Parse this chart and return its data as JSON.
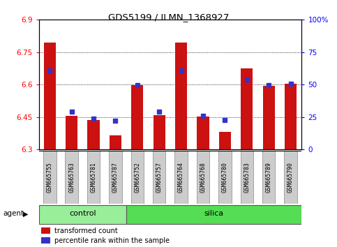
{
  "title": "GDS5199 / ILMN_1368927",
  "samples": [
    "GSM665755",
    "GSM665763",
    "GSM665781",
    "GSM665787",
    "GSM665752",
    "GSM665757",
    "GSM665764",
    "GSM665768",
    "GSM665780",
    "GSM665783",
    "GSM665789",
    "GSM665790"
  ],
  "red_values": [
    6.795,
    6.455,
    6.435,
    6.365,
    6.598,
    6.46,
    6.795,
    6.452,
    6.382,
    6.675,
    6.595,
    6.605
  ],
  "blue_values": [
    6.665,
    6.474,
    6.442,
    6.432,
    6.598,
    6.475,
    6.665,
    6.455,
    6.436,
    6.623,
    6.597,
    6.605
  ],
  "ymin": 6.3,
  "ymax": 6.9,
  "y2min": 0,
  "y2max": 100,
  "yticks": [
    6.3,
    6.45,
    6.6,
    6.75,
    6.9
  ],
  "y2ticks": [
    0,
    25,
    50,
    75,
    100
  ],
  "bar_color": "#cc1111",
  "dot_color": "#3333cc",
  "control_color": "#99ee99",
  "silica_color": "#55dd55",
  "cell_color": "#cccccc",
  "agent_label": "agent",
  "legend_red": "transformed count",
  "legend_blue": "percentile rank within the sample",
  "bar_width": 0.55,
  "n_control": 4,
  "n_total": 12
}
